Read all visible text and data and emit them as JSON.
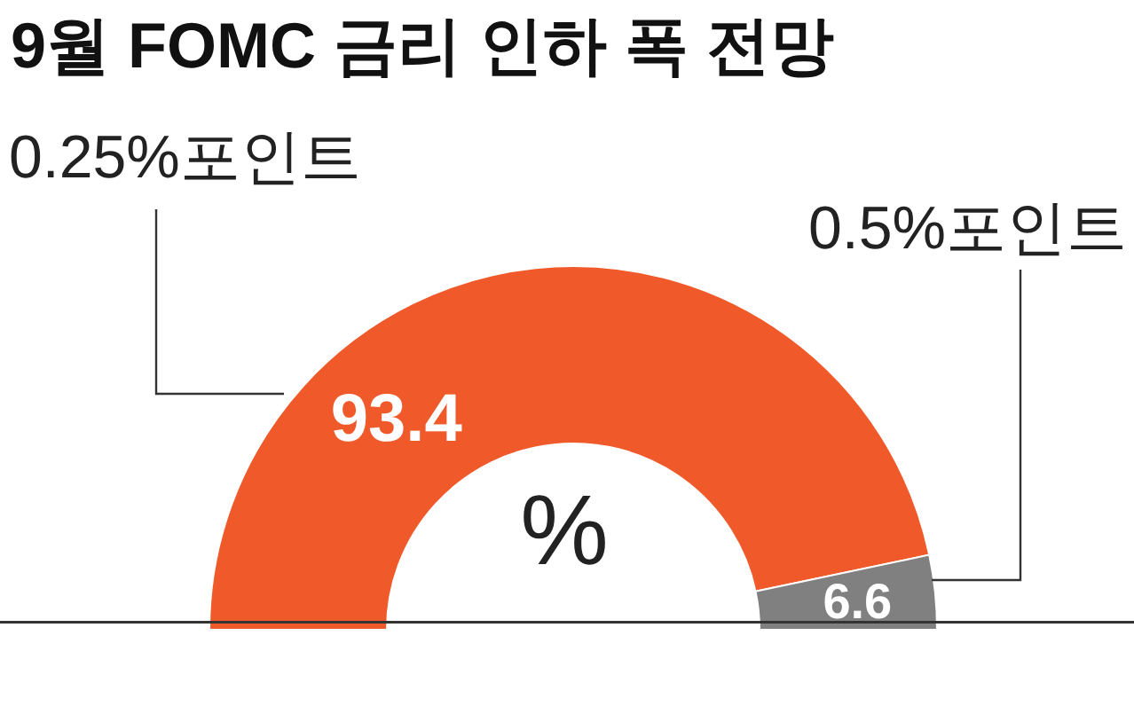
{
  "chart_data": {
    "type": "donut",
    "title": "9월 FOMC 금리 인하 폭 전망",
    "categories": [
      "0.25%포인트",
      "0.5%포인트"
    ],
    "values": [
      93.4,
      6.6
    ],
    "colors": [
      "#f05a2a",
      "#808080"
    ],
    "data_labels": true,
    "legend": false,
    "annotations": [
      "%"
    ]
  }
}
